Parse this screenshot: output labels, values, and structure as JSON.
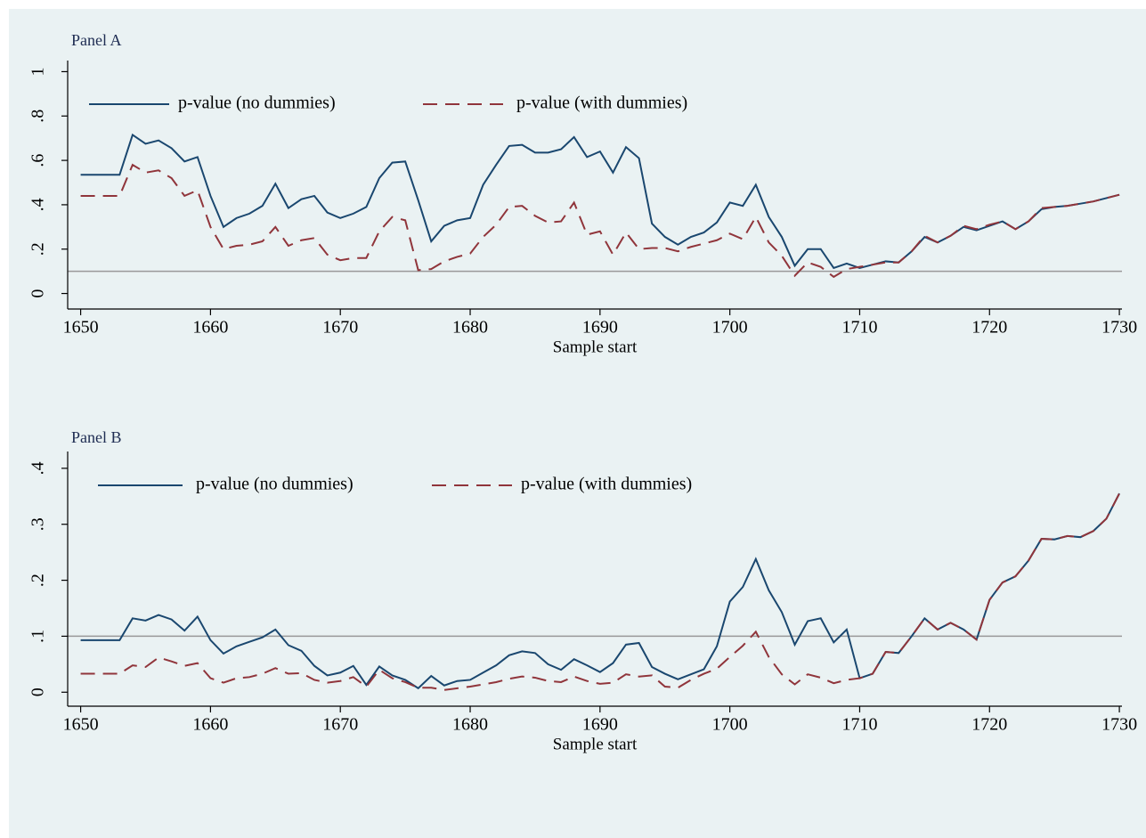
{
  "chart_data": [
    {
      "type": "line",
      "title": "Panel A",
      "xlabel": "Sample start",
      "x": [
        1650,
        1651,
        1652,
        1653,
        1654,
        1655,
        1656,
        1657,
        1658,
        1659,
        1660,
        1661,
        1662,
        1663,
        1664,
        1665,
        1666,
        1667,
        1668,
        1669,
        1670,
        1671,
        1672,
        1673,
        1674,
        1675,
        1676,
        1677,
        1678,
        1679,
        1680,
        1681,
        1682,
        1683,
        1684,
        1685,
        1686,
        1687,
        1688,
        1689,
        1690,
        1691,
        1692,
        1693,
        1694,
        1695,
        1696,
        1697,
        1698,
        1699,
        1700,
        1701,
        1702,
        1703,
        1704,
        1705,
        1706,
        1707,
        1708,
        1709,
        1710,
        1711,
        1712,
        1713,
        1714,
        1715,
        1716,
        1717,
        1718,
        1719,
        1720,
        1721,
        1722,
        1723,
        1724,
        1725,
        1726,
        1727,
        1728,
        1729,
        1730
      ],
      "series": [
        {
          "name": "p-value (no dummies)",
          "color": "#1a476f",
          "line_style": "solid",
          "values": [
            0.535,
            0.535,
            0.535,
            0.535,
            0.715,
            0.675,
            0.69,
            0.655,
            0.595,
            0.615,
            0.44,
            0.3,
            0.34,
            0.36,
            0.395,
            0.495,
            0.385,
            0.425,
            0.44,
            0.365,
            0.34,
            0.36,
            0.39,
            0.52,
            0.59,
            0.595,
            0.42,
            0.235,
            0.305,
            0.33,
            0.34,
            0.49,
            0.58,
            0.665,
            0.67,
            0.635,
            0.635,
            0.65,
            0.705,
            0.615,
            0.64,
            0.545,
            0.66,
            0.61,
            0.315,
            0.255,
            0.22,
            0.255,
            0.275,
            0.32,
            0.41,
            0.395,
            0.49,
            0.345,
            0.255,
            0.125,
            0.2,
            0.2,
            0.115,
            0.135,
            0.115,
            0.13,
            0.145,
            0.14,
            0.19,
            0.255,
            0.23,
            0.26,
            0.3,
            0.285,
            0.305,
            0.325,
            0.29,
            0.325,
            0.38,
            0.39,
            0.395,
            0.405,
            0.415,
            0.43,
            0.445
          ]
        },
        {
          "name": "p-value (with dummies)",
          "color": "#90353b",
          "line_style": "dashed",
          "values": [
            0.44,
            0.44,
            0.44,
            0.44,
            0.58,
            0.545,
            0.555,
            0.52,
            0.44,
            0.465,
            0.3,
            0.2,
            0.215,
            0.22,
            0.235,
            0.3,
            0.215,
            0.24,
            0.25,
            0.175,
            0.15,
            0.16,
            0.16,
            0.28,
            0.345,
            0.33,
            0.105,
            0.11,
            0.145,
            0.165,
            0.18,
            0.255,
            0.31,
            0.39,
            0.395,
            0.35,
            0.32,
            0.325,
            0.41,
            0.265,
            0.28,
            0.175,
            0.275,
            0.2,
            0.205,
            0.205,
            0.19,
            0.21,
            0.225,
            0.24,
            0.27,
            0.245,
            0.345,
            0.23,
            0.17,
            0.08,
            0.14,
            0.12,
            0.075,
            0.11,
            0.12,
            0.13,
            0.14,
            0.14,
            0.19,
            0.26,
            0.23,
            0.26,
            0.305,
            0.29,
            0.31,
            0.325,
            0.29,
            0.325,
            0.385,
            0.39,
            0.395,
            0.405,
            0.415,
            0.43,
            0.445
          ]
        }
      ],
      "xlim": [
        1649,
        1730.2
      ],
      "xticks": [
        1650,
        1660,
        1670,
        1680,
        1690,
        1700,
        1710,
        1720,
        1730
      ],
      "ylim": [
        -0.07,
        1.05
      ],
      "yticks": [
        0,
        {
          "value": 0.2,
          "label": ".2"
        },
        {
          "value": 0.4,
          "label": ".4"
        },
        {
          "value": 0.6,
          "label": ".6"
        },
        {
          "value": 0.8,
          "label": ".8"
        },
        1
      ],
      "hline": 0.1,
      "grid": false,
      "legend": "top-left"
    },
    {
      "type": "line",
      "title": "Panel B",
      "xlabel": "Sample start",
      "x": [
        1650,
        1651,
        1652,
        1653,
        1654,
        1655,
        1656,
        1657,
        1658,
        1659,
        1660,
        1661,
        1662,
        1663,
        1664,
        1665,
        1666,
        1667,
        1668,
        1669,
        1670,
        1671,
        1672,
        1673,
        1674,
        1675,
        1676,
        1677,
        1678,
        1679,
        1680,
        1681,
        1682,
        1683,
        1684,
        1685,
        1686,
        1687,
        1688,
        1689,
        1690,
        1691,
        1692,
        1693,
        1694,
        1695,
        1696,
        1697,
        1698,
        1699,
        1700,
        1701,
        1702,
        1703,
        1704,
        1705,
        1706,
        1707,
        1708,
        1709,
        1710,
        1711,
        1712,
        1713,
        1714,
        1715,
        1716,
        1717,
        1718,
        1719,
        1720,
        1721,
        1722,
        1723,
        1724,
        1725,
        1726,
        1727,
        1728,
        1729,
        1730
      ],
      "series": [
        {
          "name": "p-value (no dummies)",
          "color": "#1a476f",
          "line_style": "solid",
          "values": [
            0.093,
            0.093,
            0.093,
            0.093,
            0.132,
            0.128,
            0.138,
            0.13,
            0.11,
            0.135,
            0.093,
            0.069,
            0.082,
            0.09,
            0.098,
            0.112,
            0.084,
            0.074,
            0.047,
            0.03,
            0.035,
            0.047,
            0.013,
            0.046,
            0.03,
            0.022,
            0.007,
            0.029,
            0.012,
            0.02,
            0.022,
            0.035,
            0.048,
            0.066,
            0.073,
            0.07,
            0.05,
            0.04,
            0.059,
            0.048,
            0.036,
            0.052,
            0.085,
            0.088,
            0.045,
            0.033,
            0.023,
            0.032,
            0.041,
            0.082,
            0.162,
            0.188,
            0.238,
            0.182,
            0.143,
            0.085,
            0.127,
            0.132,
            0.089,
            0.112,
            0.025,
            0.033,
            0.072,
            0.07,
            0.1,
            0.132,
            0.112,
            0.124,
            0.112,
            0.094,
            0.165,
            0.196,
            0.207,
            0.235,
            0.274,
            0.273,
            0.279,
            0.277,
            0.288,
            0.31,
            0.355
          ]
        },
        {
          "name": "p-value (with dummies)",
          "color": "#90353b",
          "line_style": "dashed",
          "values": [
            0.033,
            0.033,
            0.033,
            0.033,
            0.048,
            0.045,
            0.062,
            0.055,
            0.047,
            0.052,
            0.025,
            0.017,
            0.025,
            0.027,
            0.033,
            0.043,
            0.033,
            0.034,
            0.022,
            0.017,
            0.02,
            0.027,
            0.01,
            0.04,
            0.025,
            0.018,
            0.008,
            0.008,
            0.004,
            0.007,
            0.01,
            0.014,
            0.018,
            0.024,
            0.028,
            0.026,
            0.02,
            0.018,
            0.028,
            0.02,
            0.015,
            0.017,
            0.032,
            0.028,
            0.03,
            0.01,
            0.008,
            0.022,
            0.033,
            0.042,
            0.063,
            0.083,
            0.108,
            0.063,
            0.032,
            0.014,
            0.032,
            0.026,
            0.016,
            0.022,
            0.025,
            0.033,
            0.072,
            0.07,
            0.1,
            0.132,
            0.112,
            0.124,
            0.112,
            0.094,
            0.165,
            0.196,
            0.207,
            0.235,
            0.274,
            0.273,
            0.279,
            0.277,
            0.288,
            0.31,
            0.355
          ]
        }
      ],
      "xlim": [
        1649,
        1730.2
      ],
      "xticks": [
        1650,
        1660,
        1670,
        1680,
        1690,
        1700,
        1710,
        1720,
        1730
      ],
      "ylim": [
        -0.025,
        0.43
      ],
      "yticks": [
        0,
        {
          "value": 0.1,
          "label": ".1"
        },
        {
          "value": 0.2,
          "label": ".2"
        },
        {
          "value": 0.3,
          "label": ".3"
        },
        {
          "value": 0.4,
          "label": ".4"
        }
      ],
      "hline": 0.1,
      "grid": false,
      "legend": "top-left"
    }
  ]
}
